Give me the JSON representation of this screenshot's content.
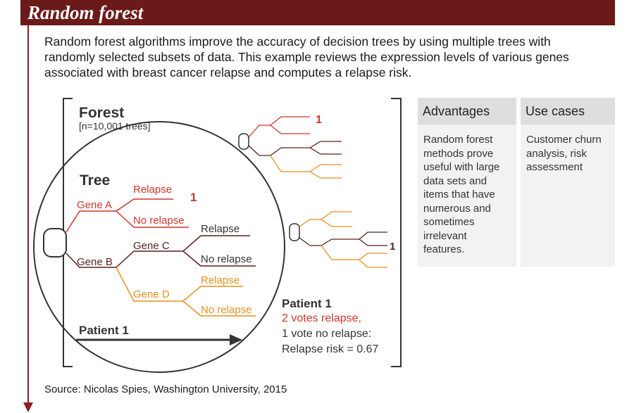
{
  "header": {
    "title": "Random forest"
  },
  "intro": "Random forest algorithms improve the accuracy of decision trees by using multiple trees with randomly selected subsets of data. This example reviews the expression levels of various genes associated with breast cancer relapse and computes a relapse risk.",
  "forest": {
    "title": "Forest",
    "subtitle": "[n=10,001 trees]"
  },
  "tree": {
    "title": "Tree",
    "gene_a": "Gene A",
    "gene_b": "Gene B",
    "gene_c": "Gene C",
    "gene_d": "Gene D",
    "a_relapse": "Relapse",
    "a_no_relapse": "No relapse",
    "c_relapse": "Relapse",
    "c_no_relapse": "No relapse",
    "d_relapse": "Relapse",
    "d_no_relapse": "No relapse",
    "vote": "1",
    "patient": "Patient 1"
  },
  "small_trees": {
    "vote_top": "1",
    "vote_bottom": "1"
  },
  "result": {
    "patient": "Patient 1",
    "votes_relapse": "2 votes relapse,",
    "votes_no_relapse": "1 vote no relapse:",
    "risk": "Relapse risk = 0.67"
  },
  "panels": {
    "advantages": {
      "title": "Advantages",
      "body": "Random forest methods prove useful with large data sets and items that have numerous and sometimes irrelevant features."
    },
    "use_cases": {
      "title": "Use cases",
      "body": "Customer churn analysis, risk assessment"
    }
  },
  "source": "Source: Nicolas Spies, Washington University, 2015",
  "colors": {
    "header": "#6b1a1a",
    "red": "#d0342c",
    "dark": "#5a1e1e",
    "orange": "#e8901e",
    "gray": "#333333"
  }
}
